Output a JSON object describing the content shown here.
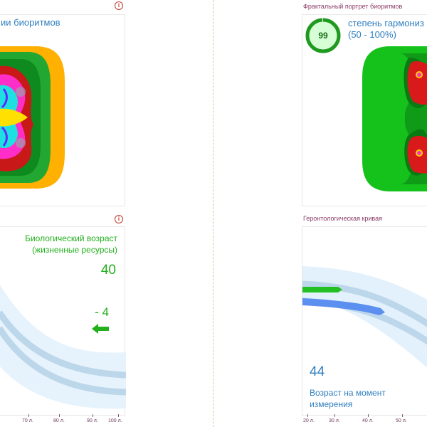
{
  "left": {
    "fractal_panel": {
      "title_fragment": "ии биоритмов"
    },
    "bio_age_panel": {
      "label_line1": "Биологический возраст",
      "label_line2": "(жизненные ресурсы)",
      "value": "40",
      "delta": "- 4",
      "axis_ticks": [
        "70 л.",
        "80 л.",
        "90 л.",
        "100 л."
      ]
    }
  },
  "right": {
    "fractal_panel": {
      "title": "Фрактальный портрет биоритмов",
      "score": "99",
      "score_fraction": 0.99,
      "harmony_label": "степень гармониз",
      "harmony_range": "(50 - 100%)"
    },
    "gerontology_panel": {
      "title": "Геронтологическая кривая",
      "age_value": "44",
      "age_label_line1": "Возраст на момент",
      "age_label_line2": "измерения",
      "axis_ticks": [
        "20 л.",
        "30 л.",
        "40 л.",
        "50 л."
      ]
    }
  },
  "colors": {
    "accent_green": "#22b01c",
    "accent_blue": "#2f7fc0",
    "title_color": "#8c3c67",
    "curve_light": "#e3f1fc",
    "curve_mid": "#bcd6ea"
  }
}
